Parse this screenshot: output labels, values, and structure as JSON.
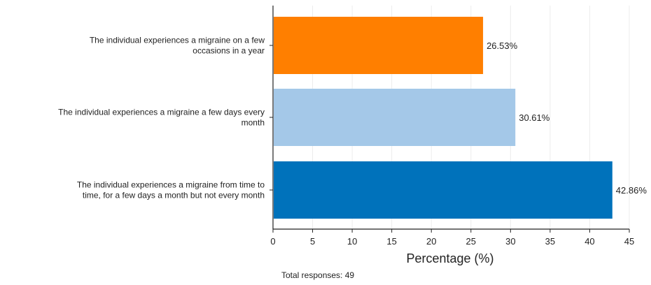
{
  "chart_data": {
    "type": "bar",
    "orientation": "horizontal",
    "categories": [
      "The individual experiences a migraine on a few occasions in a year",
      "The individual experiences a migraine a few days every month",
      "The individual experiences a migraine from time to time, for a few days a month but not every month"
    ],
    "category_label_lines": [
      [
        "The individual experiences a migraine on a few",
        "occasions in a year"
      ],
      [
        "The individual experiences a migraine a few days every",
        "month"
      ],
      [
        "The individual experiences a migraine from time to",
        "time, for a few days a month but not every month"
      ]
    ],
    "values": [
      26.53,
      30.61,
      42.86
    ],
    "value_labels": [
      "26.53%",
      "30.61%",
      "42.86%"
    ],
    "colors": [
      "#ff7f00",
      "#a4c8e8",
      "#0072bb"
    ],
    "xlabel": "Percentage (%)",
    "ylabel": "",
    "xlim": [
      0,
      45
    ],
    "xticks": [
      0,
      5,
      10,
      15,
      20,
      25,
      30,
      35,
      40,
      45
    ],
    "grid": "vertical",
    "footnote": "Total responses: 49"
  }
}
